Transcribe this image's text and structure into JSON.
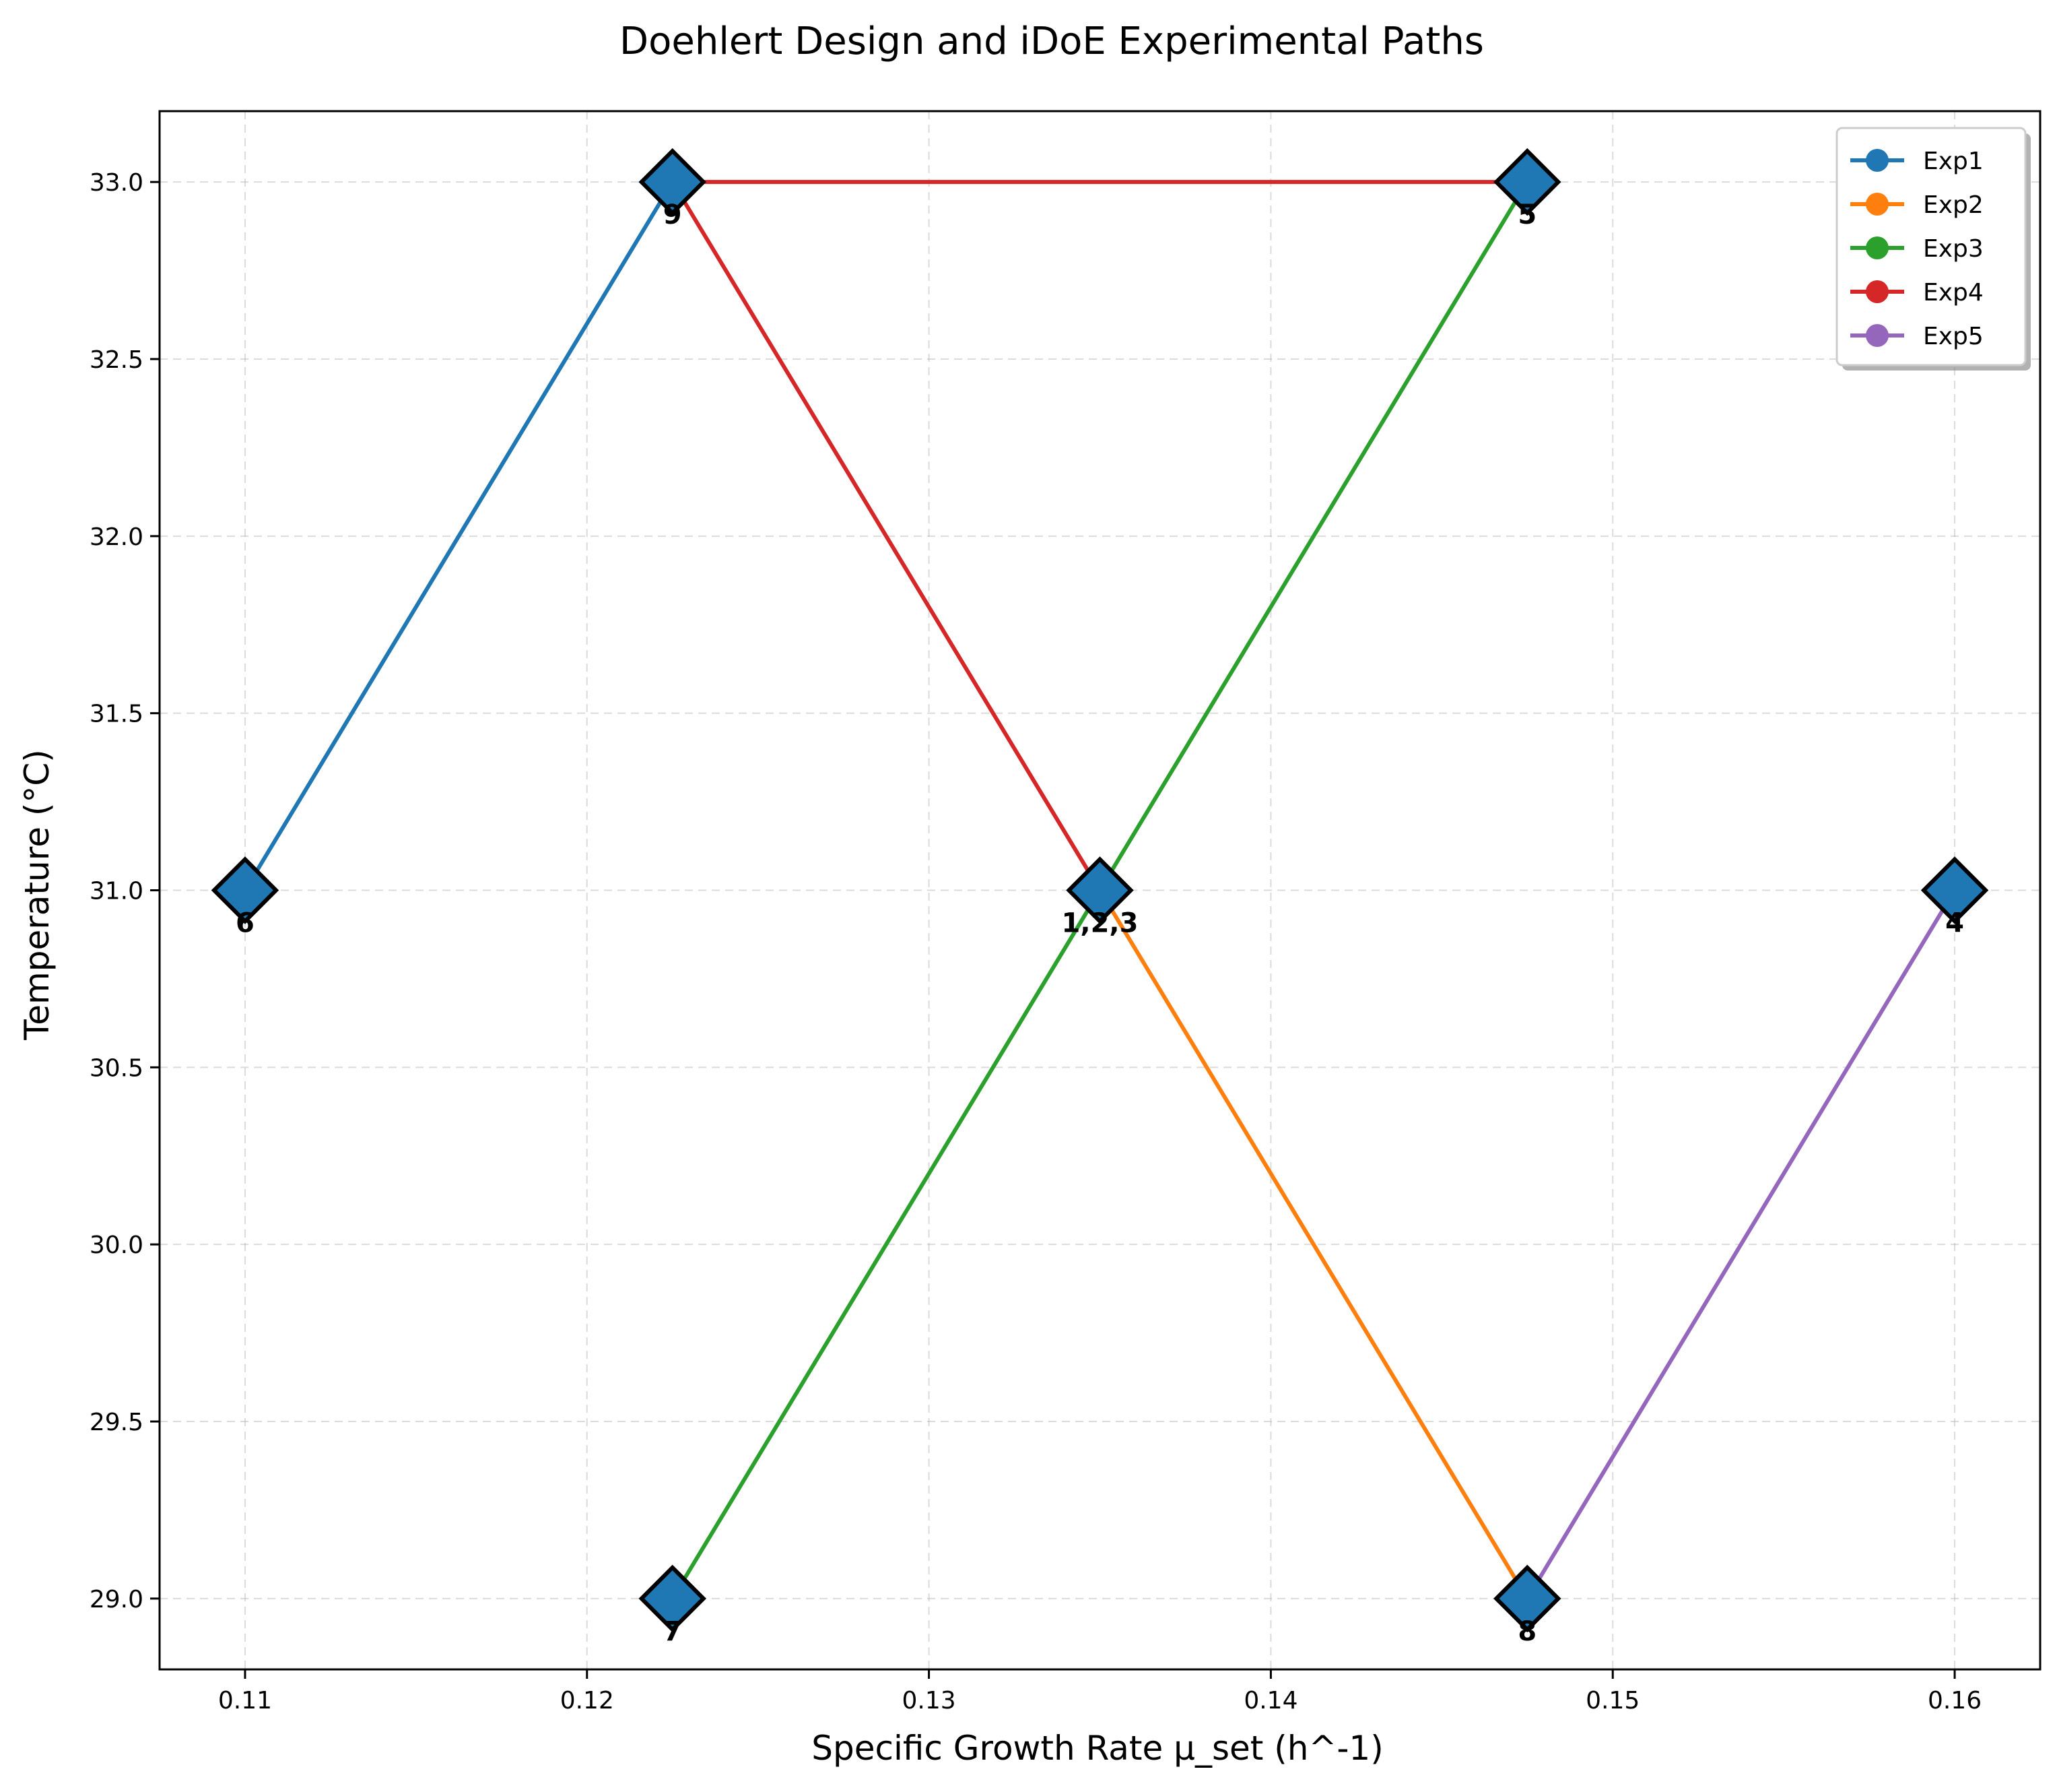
{
  "chart_data": {
    "type": "line",
    "title": "Doehlert Design and iDoE Experimental Paths",
    "xlabel": "Specific Growth Rate μ_set (h^-1)",
    "ylabel": "Temperature (°C)",
    "xlim": [
      0.1075,
      0.1625
    ],
    "ylim": [
      28.8,
      33.2
    ],
    "x_ticks": [
      0.11,
      0.12,
      0.13,
      0.14,
      0.15,
      0.16
    ],
    "x_tick_labels": [
      "0.11",
      "0.12",
      "0.13",
      "0.14",
      "0.15",
      "0.16"
    ],
    "y_ticks": [
      29.0,
      29.5,
      30.0,
      30.5,
      31.0,
      31.5,
      32.0,
      32.5,
      33.0
    ],
    "y_tick_labels": [
      "29.0",
      "29.5",
      "30.0",
      "30.5",
      "31.0",
      "31.5",
      "32.0",
      "32.5",
      "33.0"
    ],
    "grid": true,
    "legend_position": "top-right",
    "series": [
      {
        "name": "Exp1",
        "color": "#1f77b4",
        "points": [
          [
            0.11,
            31.0
          ],
          [
            0.1225,
            33.0
          ]
        ]
      },
      {
        "name": "Exp2",
        "color": "#ff7f0e",
        "points": [
          [
            0.135,
            31.0
          ],
          [
            0.1475,
            29.0
          ]
        ]
      },
      {
        "name": "Exp3",
        "color": "#2ca02c",
        "points": [
          [
            0.1225,
            29.0
          ],
          [
            0.135,
            31.0
          ],
          [
            0.1475,
            33.0
          ]
        ]
      },
      {
        "name": "Exp4",
        "color": "#d62728",
        "points": [
          [
            0.1475,
            33.0
          ],
          [
            0.1225,
            33.0
          ],
          [
            0.135,
            31.0
          ]
        ]
      },
      {
        "name": "Exp5",
        "color": "#9467bd",
        "points": [
          [
            0.1475,
            29.0
          ],
          [
            0.16,
            31.0
          ]
        ]
      }
    ],
    "design_points": [
      {
        "x": 0.135,
        "y": 31.0,
        "label": "1,2,3"
      },
      {
        "x": 0.16,
        "y": 31.0,
        "label": "4"
      },
      {
        "x": 0.1475,
        "y": 33.0,
        "label": "5"
      },
      {
        "x": 0.11,
        "y": 31.0,
        "label": "6"
      },
      {
        "x": 0.1225,
        "y": 29.0,
        "label": "7"
      },
      {
        "x": 0.1475,
        "y": 29.0,
        "label": "8"
      },
      {
        "x": 0.1225,
        "y": 33.0,
        "label": "9"
      }
    ],
    "marker_color": "#1f77b4"
  }
}
